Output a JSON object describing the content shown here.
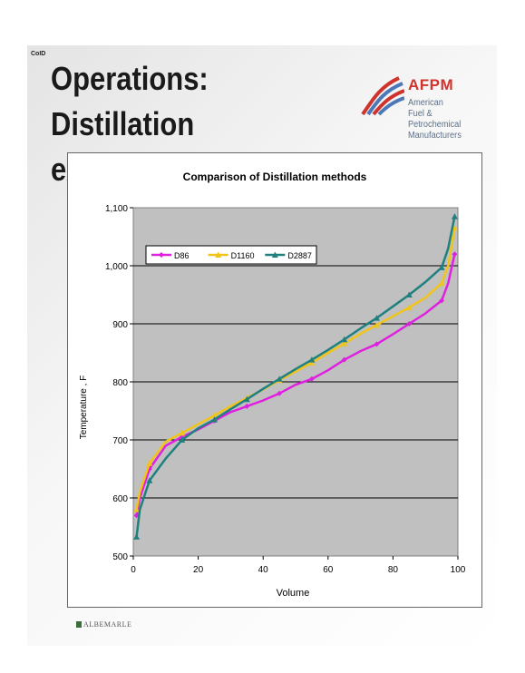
{
  "slide": {
    "number": "CoID",
    "title_line1": "Operations: Distillation",
    "title_line2": "example",
    "logo_name": "AFPM",
    "logo_sub_line1": "American",
    "logo_sub_line2": "Fuel & Petrochemical",
    "logo_sub_line3": "Manufacturers",
    "footer": "ALBEMARLE"
  },
  "chart_data": {
    "type": "line",
    "title": "Comparison of Distillation methods",
    "xlabel": "Volume",
    "ylabel": "Temperature , F",
    "xlim": [
      0,
      100
    ],
    "ylim": [
      500,
      1100
    ],
    "x_ticks": [
      0,
      20,
      40,
      60,
      80,
      100
    ],
    "y_ticks": [
      500,
      600,
      700,
      800,
      900,
      1000,
      1100
    ],
    "x_tick_labels": [
      "0",
      "20",
      "40",
      "60",
      "80",
      "100"
    ],
    "y_tick_labels": [
      "500",
      "600",
      "700",
      "800",
      "900",
      "1,000",
      "1,100"
    ],
    "grid": "horizontal",
    "plot_background": "#c0c0c0",
    "legend_position": "top-left",
    "series": [
      {
        "name": "D86",
        "color": "#e020e0",
        "marker": "diamond",
        "points": [
          [
            1,
            570
          ],
          [
            2,
            600
          ],
          [
            5,
            650
          ],
          [
            10,
            690
          ],
          [
            15,
            705
          ],
          [
            20,
            718
          ],
          [
            25,
            733
          ],
          [
            30,
            748
          ],
          [
            35,
            758
          ],
          [
            40,
            768
          ],
          [
            45,
            780
          ],
          [
            50,
            795
          ],
          [
            55,
            805
          ],
          [
            60,
            820
          ],
          [
            65,
            838
          ],
          [
            70,
            853
          ],
          [
            75,
            865
          ],
          [
            80,
            882
          ],
          [
            85,
            900
          ],
          [
            90,
            918
          ],
          [
            95,
            940
          ],
          [
            97,
            970
          ],
          [
            99,
            1020
          ]
        ]
      },
      {
        "name": "D1160",
        "color": "#f0c418",
        "marker": "triangle",
        "points": [
          [
            1,
            580
          ],
          [
            2,
            610
          ],
          [
            5,
            660
          ],
          [
            10,
            697
          ],
          [
            15,
            712
          ],
          [
            20,
            727
          ],
          [
            25,
            742
          ],
          [
            30,
            758
          ],
          [
            35,
            772
          ],
          [
            40,
            787
          ],
          [
            45,
            803
          ],
          [
            50,
            818
          ],
          [
            55,
            833
          ],
          [
            60,
            850
          ],
          [
            65,
            866
          ],
          [
            70,
            883
          ],
          [
            75,
            898
          ],
          [
            80,
            913
          ],
          [
            85,
            928
          ],
          [
            90,
            945
          ],
          [
            95,
            970
          ],
          [
            97,
            1000
          ],
          [
            99,
            1065
          ]
        ]
      },
      {
        "name": "D2887",
        "color": "#208080",
        "marker": "triangle",
        "points": [
          [
            1,
            533
          ],
          [
            2,
            580
          ],
          [
            5,
            630
          ],
          [
            10,
            668
          ],
          [
            15,
            700
          ],
          [
            20,
            720
          ],
          [
            25,
            735
          ],
          [
            30,
            753
          ],
          [
            35,
            770
          ],
          [
            40,
            788
          ],
          [
            45,
            805
          ],
          [
            50,
            822
          ],
          [
            55,
            838
          ],
          [
            60,
            855
          ],
          [
            65,
            873
          ],
          [
            70,
            892
          ],
          [
            75,
            910
          ],
          [
            80,
            930
          ],
          [
            85,
            950
          ],
          [
            90,
            972
          ],
          [
            95,
            997
          ],
          [
            97,
            1030
          ],
          [
            99,
            1085
          ]
        ]
      }
    ]
  }
}
